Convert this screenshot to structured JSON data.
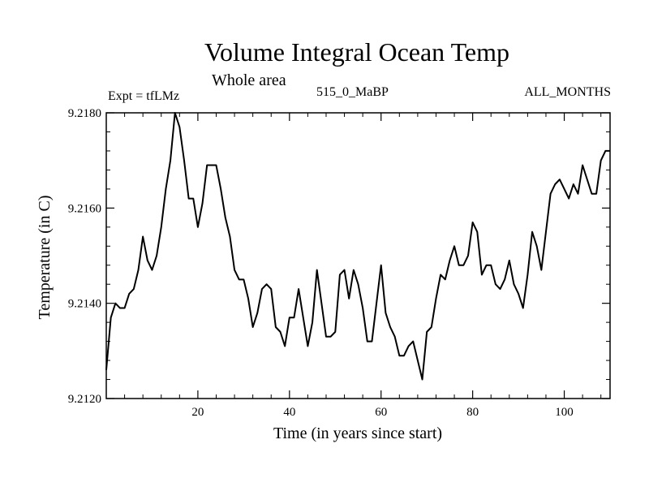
{
  "chart_data": {
    "type": "line",
    "title": "Volume Integral Ocean Temp",
    "subtitle": "Whole area",
    "experiment": "Expt = tfLMz",
    "run_label": "515_0_MaBP",
    "period_label": "ALL_MONTHS",
    "xlabel": "Time (in years since start)",
    "ylabel": "Temperature (in C)",
    "xlim": [
      0,
      110
    ],
    "ylim": [
      9.212,
      9.218
    ],
    "x_ticks": [
      20,
      40,
      60,
      80,
      100
    ],
    "x_tick_labels": [
      "20",
      "40",
      "60",
      "80",
      "100"
    ],
    "y_ticks": [
      9.212,
      9.214,
      9.216,
      9.218
    ],
    "y_tick_labels": [
      "9.2120",
      "9.2140",
      "9.2160",
      "9.2180"
    ],
    "series": [
      {
        "name": "Volume Integral Ocean Temp",
        "x": [
          0,
          1,
          2,
          3,
          4,
          5,
          6,
          7,
          8,
          9,
          10,
          11,
          12,
          13,
          14,
          15,
          16,
          17,
          18,
          19,
          20,
          21,
          22,
          23,
          24,
          25,
          26,
          27,
          28,
          29,
          30,
          31,
          32,
          33,
          34,
          35,
          36,
          37,
          38,
          39,
          40,
          41,
          42,
          43,
          44,
          45,
          46,
          47,
          48,
          49,
          50,
          51,
          52,
          53,
          54,
          55,
          56,
          57,
          58,
          59,
          60,
          61,
          62,
          63,
          64,
          65,
          66,
          67,
          68,
          69,
          70,
          71,
          72,
          73,
          74,
          75,
          76,
          77,
          78,
          79,
          80,
          81,
          82,
          83,
          84,
          85,
          86,
          87,
          88,
          89,
          90,
          91,
          92,
          93,
          94,
          95,
          96,
          97,
          98,
          99,
          100,
          101,
          102,
          103,
          104,
          105,
          106,
          107,
          108,
          109,
          110
        ],
        "y": [
          9.2126,
          9.2137,
          9.214,
          9.2139,
          9.2139,
          9.2142,
          9.2143,
          9.2147,
          9.2154,
          9.2149,
          9.2147,
          9.215,
          9.2156,
          9.2164,
          9.217,
          9.218,
          9.2177,
          9.217,
          9.2162,
          9.2162,
          9.2156,
          9.2161,
          9.2169,
          9.2169,
          9.2169,
          9.2164,
          9.2158,
          9.2154,
          9.2147,
          9.2145,
          9.2145,
          9.2141,
          9.2135,
          9.2138,
          9.2143,
          9.2144,
          9.2143,
          9.2135,
          9.2134,
          9.2131,
          9.2137,
          9.2137,
          9.2143,
          9.2137,
          9.2131,
          9.2136,
          9.2147,
          9.214,
          9.2133,
          9.2133,
          9.2134,
          9.2146,
          9.2147,
          9.2141,
          9.2147,
          9.2144,
          9.2139,
          9.2132,
          9.2132,
          9.214,
          9.2148,
          9.2138,
          9.2135,
          9.2133,
          9.2129,
          9.2129,
          9.2131,
          9.2132,
          9.2128,
          9.2124,
          9.2134,
          9.2135,
          9.2141,
          9.2146,
          9.2145,
          9.2149,
          9.2152,
          9.2148,
          9.2148,
          9.215,
          9.2157,
          9.2155,
          9.2146,
          9.2148,
          9.2148,
          9.2144,
          9.2143,
          9.2145,
          9.2149,
          9.2144,
          9.2142,
          9.2139,
          9.2146,
          9.2155,
          9.2152,
          9.2147,
          9.2155,
          9.2163,
          9.2165,
          9.2166,
          9.2164,
          9.2162,
          9.2165,
          9.2163,
          9.2169,
          9.2166,
          9.2163,
          9.2163,
          9.217,
          9.2172,
          9.2172
        ]
      }
    ]
  }
}
